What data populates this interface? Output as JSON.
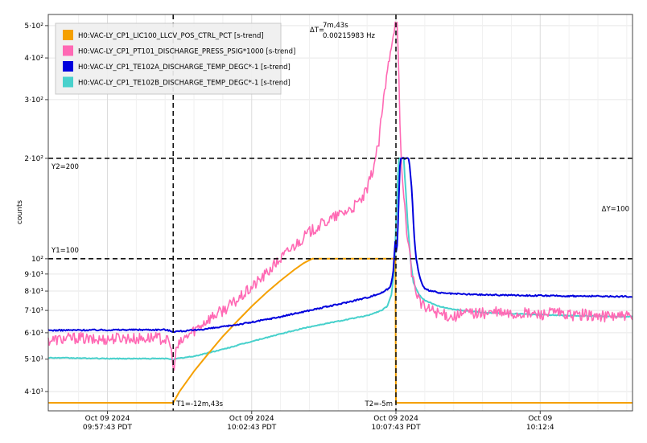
{
  "chart_data": {
    "type": "line",
    "ylabel": "counts",
    "yscale": "log",
    "ylim": [
      35,
      540
    ],
    "y_ticks": [
      {
        "value": 40,
        "label": "4·10¹"
      },
      {
        "value": 50,
        "label": "5·10¹"
      },
      {
        "value": 60,
        "label": "6·10¹"
      },
      {
        "value": 70,
        "label": "7·10¹"
      },
      {
        "value": 80,
        "label": "8·10¹"
      },
      {
        "value": 90,
        "label": "9·10¹"
      },
      {
        "value": 100,
        "label": "10²"
      },
      {
        "value": 200,
        "label": "2·10²"
      },
      {
        "value": 300,
        "label": "3·10²"
      },
      {
        "value": 400,
        "label": "4·10²"
      },
      {
        "value": 500,
        "label": "5·10²"
      }
    ],
    "x_unit": "minutes",
    "xlim": [
      -17.05,
      3.2
    ],
    "x_ticks": [
      {
        "value": -15,
        "line1": "Oct 09 2024",
        "line2": "09:57:43 PDT"
      },
      {
        "value": -10,
        "line1": "Oct 09 2024",
        "line2": "10:02:43 PDT"
      },
      {
        "value": -5,
        "line1": "Oct 09 2024",
        "line2": "10:07:43 PDT"
      },
      {
        "value": 0,
        "line1": "Oct 09",
        "line2": "10:12:4"
      }
    ],
    "grid": true,
    "legend_position": "top-left",
    "series": [
      {
        "name": "H0:VAC-LY_CP1_LIC100_LLCV_POS_CTRL_PCT [s-trend]",
        "color": "#f5a000",
        "points": [
          [
            -17.05,
            37
          ],
          [
            -12.72,
            37
          ],
          [
            -12.5,
            40
          ],
          [
            -12.0,
            46
          ],
          [
            -11.5,
            52
          ],
          [
            -11.0,
            58.5
          ],
          [
            -10.5,
            65
          ],
          [
            -10.0,
            72
          ],
          [
            -9.5,
            79
          ],
          [
            -9.0,
            86
          ],
          [
            -8.5,
            93
          ],
          [
            -8.2,
            97
          ],
          [
            -7.9,
            100
          ],
          [
            -5.02,
            100
          ],
          [
            -5.0,
            37
          ],
          [
            3.2,
            37
          ]
        ]
      },
      {
        "name": "H0:VAC-LY_CP1_PT101_DISCHARGE_PRESS_PSIG*1000 [s-trend]",
        "color": "#ff69b4",
        "points": [
          [
            -17.05,
            57
          ],
          [
            -16.5,
            57.5
          ],
          [
            -16.0,
            58
          ],
          [
            -15.5,
            57
          ],
          [
            -15.0,
            57.5
          ],
          [
            -14.5,
            58
          ],
          [
            -14.0,
            57.5
          ],
          [
            -13.5,
            58
          ],
          [
            -13.0,
            57.5
          ],
          [
            -12.8,
            55
          ],
          [
            -12.72,
            46
          ],
          [
            -12.6,
            54
          ],
          [
            -12.3,
            58
          ],
          [
            -12.0,
            61
          ],
          [
            -11.5,
            66
          ],
          [
            -11.0,
            70
          ],
          [
            -10.5,
            75
          ],
          [
            -10.0,
            82
          ],
          [
            -9.5,
            90
          ],
          [
            -9.0,
            100
          ],
          [
            -8.5,
            110
          ],
          [
            -8.0,
            120
          ],
          [
            -7.5,
            128
          ],
          [
            -7.0,
            135
          ],
          [
            -6.5,
            142
          ],
          [
            -6.2,
            150
          ],
          [
            -6.0,
            160
          ],
          [
            -5.8,
            185
          ],
          [
            -5.6,
            220
          ],
          [
            -5.5,
            265
          ],
          [
            -5.4,
            310
          ],
          [
            -5.3,
            360
          ],
          [
            -5.2,
            420
          ],
          [
            -5.1,
            470
          ],
          [
            -5.05,
            500
          ],
          [
            -4.98,
            520
          ],
          [
            -4.95,
            490
          ],
          [
            -4.9,
            350
          ],
          [
            -4.85,
            220
          ],
          [
            -4.75,
            160
          ],
          [
            -4.6,
            115
          ],
          [
            -4.45,
            90
          ],
          [
            -4.3,
            80
          ],
          [
            -4.15,
            74
          ],
          [
            -4.0,
            71
          ],
          [
            -3.7,
            70
          ],
          [
            -3.4,
            68
          ],
          [
            -3.0,
            67
          ],
          [
            -2.5,
            69
          ],
          [
            -2.0,
            68.5
          ],
          [
            -1.5,
            69
          ],
          [
            -1.0,
            68
          ],
          [
            -0.5,
            68.5
          ],
          [
            0,
            68
          ],
          [
            0.5,
            69
          ],
          [
            1.0,
            67.5
          ],
          [
            1.5,
            68
          ],
          [
            2.0,
            67
          ],
          [
            2.5,
            67.5
          ],
          [
            3.0,
            67
          ],
          [
            3.2,
            66
          ]
        ],
        "noise": 0.04
      },
      {
        "name": "H0:VAC-LY_CP1_TE102A_DISCHARGE_TEMP_DEGC*-1 [s-trend]",
        "color": "#0000dd",
        "points": [
          [
            -17.05,
            61
          ],
          [
            -15,
            61.2
          ],
          [
            -13,
            61.3
          ],
          [
            -12.72,
            60.5
          ],
          [
            -12,
            61
          ],
          [
            -11,
            62.5
          ],
          [
            -10,
            64.5
          ],
          [
            -9,
            67
          ],
          [
            -8,
            70
          ],
          [
            -7,
            73
          ],
          [
            -6,
            76.5
          ],
          [
            -5.5,
            79
          ],
          [
            -5.2,
            82
          ],
          [
            -5.1,
            90
          ],
          [
            -5.02,
            115
          ],
          [
            -4.98,
            100
          ],
          [
            -4.92,
            130
          ],
          [
            -4.85,
            200
          ],
          [
            -4.6,
            200
          ],
          [
            -4.55,
            200
          ],
          [
            -4.45,
            160
          ],
          [
            -4.38,
            120
          ],
          [
            -4.3,
            100
          ],
          [
            -4.2,
            90
          ],
          [
            -4.1,
            84
          ],
          [
            -4.0,
            81
          ],
          [
            -3.5,
            79
          ],
          [
            -3.0,
            78.5
          ],
          [
            -2.0,
            78
          ],
          [
            -1.0,
            77.8
          ],
          [
            0,
            77.5
          ],
          [
            1,
            77.3
          ],
          [
            2,
            77.2
          ],
          [
            3.2,
            77
          ]
        ],
        "noise": 0.005
      },
      {
        "name": "H0:VAC-LY_CP1_TE102B_DISCHARGE_TEMP_DEGC*-1 [s-trend]",
        "color": "#48d1cc",
        "points": [
          [
            -17.05,
            50.5
          ],
          [
            -15,
            50.2
          ],
          [
            -13,
            50.2
          ],
          [
            -12.72,
            50
          ],
          [
            -12,
            51
          ],
          [
            -11,
            53.5
          ],
          [
            -10,
            56.5
          ],
          [
            -9,
            59.5
          ],
          [
            -8,
            62.5
          ],
          [
            -7,
            65
          ],
          [
            -6,
            67.5
          ],
          [
            -5.5,
            70
          ],
          [
            -5.3,
            72
          ],
          [
            -5.15,
            78
          ],
          [
            -5.05,
            95
          ],
          [
            -4.98,
            140
          ],
          [
            -4.9,
            200
          ],
          [
            -4.72,
            200
          ],
          [
            -4.7,
            180
          ],
          [
            -4.6,
            130
          ],
          [
            -4.5,
            100
          ],
          [
            -4.4,
            85
          ],
          [
            -4.2,
            78
          ],
          [
            -4.0,
            75
          ],
          [
            -3.5,
            72
          ],
          [
            -3.0,
            70.5
          ],
          [
            -2.0,
            69
          ],
          [
            -1.0,
            68.5
          ],
          [
            0,
            68
          ],
          [
            1,
            67.5
          ],
          [
            2,
            67.3
          ],
          [
            3.2,
            67
          ]
        ],
        "noise": 0.003
      }
    ],
    "cursors": {
      "x": [
        {
          "value": -12.72,
          "label": "T1=-12m,43s"
        },
        {
          "value": -5.0,
          "label": "T2=-5m"
        }
      ],
      "y": [
        {
          "value": 200,
          "label": "Y2=200"
        },
        {
          "value": 100,
          "label": "Y1=100"
        }
      ],
      "delta_t": {
        "prefix": "ΔT=",
        "value": "7m,43s",
        "freq": "0.00215983 Hz"
      },
      "delta_y": "ΔY=100"
    }
  }
}
